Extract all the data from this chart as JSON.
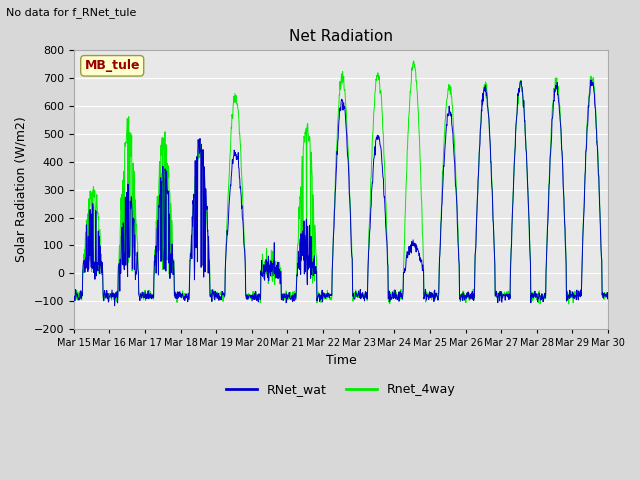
{
  "title": "Net Radiation",
  "subtitle": "No data for f_RNet_tule",
  "xlabel": "Time",
  "ylabel": "Solar Radiation (W/m2)",
  "ylim": [
    -200,
    800
  ],
  "yticks": [
    -200,
    -100,
    0,
    100,
    200,
    300,
    400,
    500,
    600,
    700,
    800
  ],
  "xtick_labels": [
    "Mar 15",
    "Mar 16",
    "Mar 17",
    "Mar 18",
    "Mar 19",
    "Mar 20",
    "Mar 21",
    "Mar 22",
    "Mar 23",
    "Mar 24",
    "Mar 25",
    "Mar 26",
    "Mar 27",
    "Mar 28",
    "Mar 29",
    "Mar 30"
  ],
  "annotation_box": "MB_tule",
  "annotation_box_color": "#ffffcc",
  "annotation_text_color": "#990000",
  "line1_label": "RNet_wat",
  "line1_color": "#0000cc",
  "line2_label": "Rnet_4way",
  "line2_color": "#00ee00",
  "background_color": "#d8d8d8",
  "plot_bg_color": "#e8e8e8",
  "grid_color": "#ffffff",
  "num_days": 15,
  "points_per_day": 96,
  "title_fontsize": 11,
  "axis_fontsize": 9,
  "tick_fontsize": 8
}
